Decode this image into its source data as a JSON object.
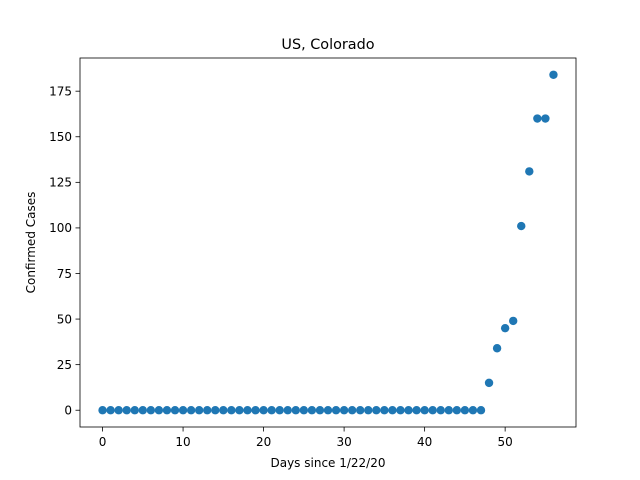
{
  "chart_data": {
    "type": "scatter",
    "title": "US, Colorado",
    "xlabel": "Days since 1/22/20",
    "ylabel": "Confirmed Cases",
    "xlim": [
      -2.8,
      58.8
    ],
    "ylim": [
      -9.2,
      193.2
    ],
    "xticks": [
      0,
      10,
      20,
      30,
      40,
      50
    ],
    "yticks": [
      0,
      25,
      50,
      75,
      100,
      125,
      150,
      175
    ],
    "grid": false,
    "marker_color": "#1f77b4",
    "series": [
      {
        "x": [
          0,
          1,
          2,
          3,
          4,
          5,
          6,
          7,
          8,
          9,
          10,
          11,
          12,
          13,
          14,
          15,
          16,
          17,
          18,
          19,
          20,
          21,
          22,
          23,
          24,
          25,
          26,
          27,
          28,
          29,
          30,
          31,
          32,
          33,
          34,
          35,
          36,
          37,
          38,
          39,
          40,
          41,
          42,
          43,
          44,
          45,
          46,
          47,
          48,
          49,
          50,
          51,
          52,
          53,
          54,
          55,
          56
        ],
        "y": [
          0,
          0,
          0,
          0,
          0,
          0,
          0,
          0,
          0,
          0,
          0,
          0,
          0,
          0,
          0,
          0,
          0,
          0,
          0,
          0,
          0,
          0,
          0,
          0,
          0,
          0,
          0,
          0,
          0,
          0,
          0,
          0,
          0,
          0,
          0,
          0,
          0,
          0,
          0,
          0,
          0,
          0,
          0,
          0,
          0,
          0,
          0,
          0,
          15,
          34,
          45,
          49,
          101,
          131,
          160,
          160,
          184
        ]
      }
    ]
  }
}
